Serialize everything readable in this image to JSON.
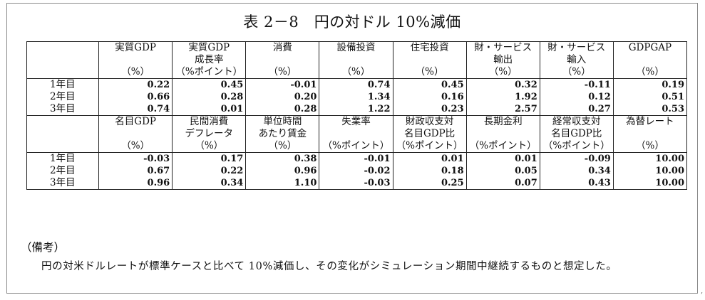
{
  "title": "表 2－8　円の対ドル 10%減価",
  "block1": {
    "headers": [
      {
        "l1": "実質GDP",
        "l2": "",
        "unit": "（%）"
      },
      {
        "l1": "実質GDP",
        "l2": "成長率",
        "unit": "（%ポイント）"
      },
      {
        "l1": "消費",
        "l2": "",
        "unit": "（%）"
      },
      {
        "l1": "設備投資",
        "l2": "",
        "unit": "（%）"
      },
      {
        "l1": "住宅投資",
        "l2": "",
        "unit": "（%）"
      },
      {
        "l1": "財・サービス",
        "l2": "輸出",
        "unit": "（%）"
      },
      {
        "l1": "財・サービス",
        "l2": "輸入",
        "unit": "（%）"
      },
      {
        "l1": "GDPGAP",
        "l2": "",
        "unit": "（%）"
      }
    ],
    "rows": [
      {
        "label": "1年目",
        "values": [
          "0.22",
          "0.45",
          "-0.01",
          "0.74",
          "0.45",
          "0.32",
          "-0.11",
          "0.19"
        ]
      },
      {
        "label": "2年目",
        "values": [
          "0.66",
          "0.28",
          "0.20",
          "1.34",
          "0.16",
          "1.92",
          "0.12",
          "0.51"
        ]
      },
      {
        "label": "3年目",
        "values": [
          "0.74",
          "0.01",
          "0.28",
          "1.22",
          "0.23",
          "2.57",
          "0.27",
          "0.53"
        ]
      }
    ]
  },
  "block2": {
    "headers": [
      {
        "l1": "名目GDP",
        "l2": "",
        "unit": "（%）"
      },
      {
        "l1": "民間消費",
        "l2": "デフレータ",
        "unit": "（%）"
      },
      {
        "l1": "単位時間",
        "l2": "あたり賃金",
        "unit": "（%）"
      },
      {
        "l1": "失業率",
        "l2": "",
        "unit": "（%ポイント）"
      },
      {
        "l1": "財政収支対",
        "l2": "名目GDP比",
        "unit": "（%ポイント）"
      },
      {
        "l1": "長期金利",
        "l2": "",
        "unit": "（%ポイント）"
      },
      {
        "l1": "経常収支対",
        "l2": "名目GDP比",
        "unit": "（%ポイント）"
      },
      {
        "l1": "為替レート",
        "l2": "",
        "unit": "（%）"
      }
    ],
    "rows": [
      {
        "label": "1年目",
        "values": [
          "-0.03",
          "0.17",
          "0.38",
          "-0.01",
          "0.01",
          "0.01",
          "-0.09",
          "10.00"
        ]
      },
      {
        "label": "2年目",
        "values": [
          "0.67",
          "0.22",
          "0.96",
          "-0.02",
          "0.18",
          "0.05",
          "0.34",
          "10.00"
        ]
      },
      {
        "label": "3年目",
        "values": [
          "0.96",
          "0.34",
          "1.10",
          "-0.03",
          "0.25",
          "0.07",
          "0.43",
          "10.00"
        ]
      }
    ]
  },
  "notes": {
    "heading": "（備考）",
    "body": "円の対米ドルレートが標準ケースと比べて 10%減価し、その変化がシミュレーション期間中継続するものと想定した。"
  }
}
